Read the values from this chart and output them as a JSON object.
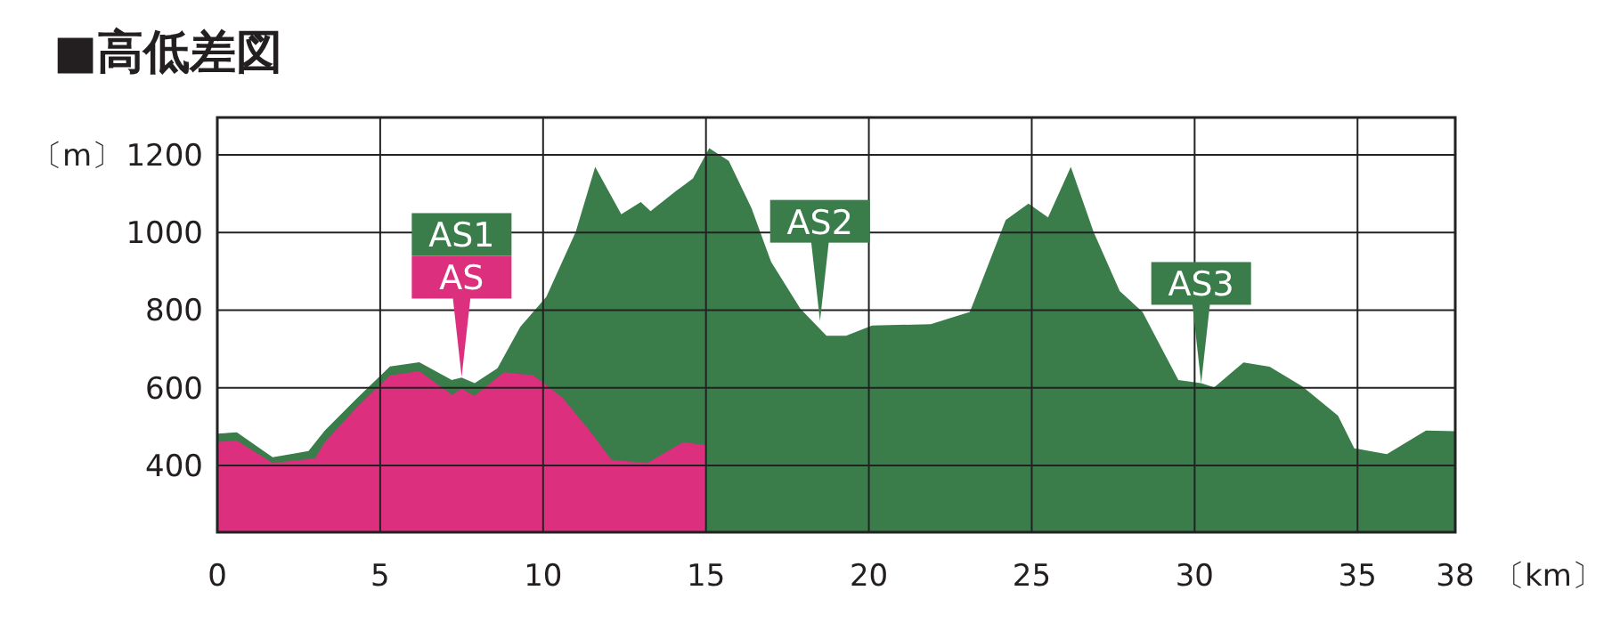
{
  "chart_data": {
    "type": "area",
    "title": "■高低差図",
    "ylabel": "〔m〕",
    "xlabel": "〔km〕",
    "xlim": [
      0,
      38
    ],
    "xticks": [
      0,
      5,
      10,
      15,
      20,
      25,
      30,
      35,
      38
    ],
    "ylim": [
      228,
      1296
    ],
    "yticks": [
      400,
      600,
      800,
      1000,
      1200
    ],
    "grid": true,
    "series": [
      {
        "color": "#3a7d4a",
        "x": [
          0,
          0.6,
          1.7,
          2.8,
          3.3,
          4.3,
          5.3,
          6.2,
          7.2,
          7.5,
          7.9,
          8.6,
          9.3,
          10.1,
          11.0,
          11.6,
          12.4,
          13.0,
          13.3,
          14.1,
          14.6,
          15.1,
          15.7,
          16.4,
          17.0,
          17.9,
          18.7,
          19.3,
          20.1,
          21.9,
          23.1,
          24.2,
          24.9,
          25.5,
          26.2,
          26.9,
          27.7,
          28.4,
          29.5,
          30.2,
          30.6,
          31.5,
          32.3,
          33.3,
          34.4,
          34.9,
          35.9,
          37.1,
          38
        ],
        "values": [
          482,
          485,
          421,
          437,
          490,
          574,
          655,
          666,
          620,
          626,
          612,
          650,
          757,
          834,
          1001,
          1169,
          1047,
          1078,
          1055,
          1108,
          1139,
          1217,
          1184,
          1062,
          924,
          803,
          734,
          734,
          760,
          764,
          795,
          1032,
          1074,
          1039,
          1169,
          1001,
          849,
          795,
          620,
          612,
          601,
          665,
          654,
          604,
          528,
          444,
          429,
          490,
          488
        ]
      },
      {
        "color": "#dc2f7d",
        "x": [
          0,
          0.6,
          1.7,
          3.0,
          3.3,
          4.3,
          5.3,
          6.2,
          7.2,
          7.5,
          7.9,
          8.8,
          9.7,
          10.6,
          11.5,
          12.1,
          13.2,
          14.3,
          15.0
        ],
        "values": [
          460,
          464,
          406,
          418,
          460,
          551,
          632,
          643,
          582,
          597,
          579,
          640,
          632,
          574,
          482,
          414,
          406,
          460,
          452
        ]
      }
    ],
    "annotations": [
      {
        "text": "AS1",
        "x": 7.5,
        "y": 628
      },
      {
        "text": "AS",
        "x": 7.5,
        "y": 628
      },
      {
        "text": "AS2",
        "x": 18.5,
        "y": 772
      },
      {
        "text": "AS3",
        "x": 30.2,
        "y": 612
      }
    ]
  }
}
